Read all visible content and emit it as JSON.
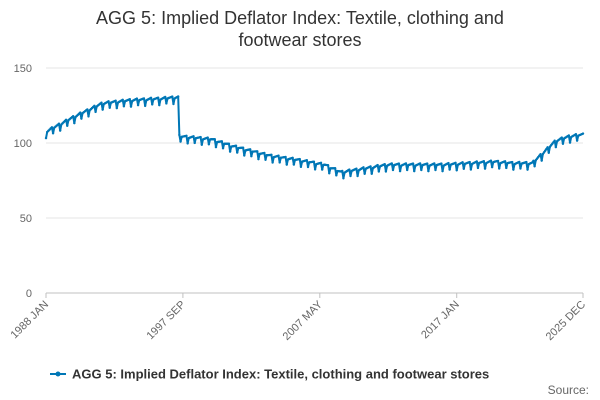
{
  "chart_data": {
    "type": "line",
    "title_lines": [
      "AGG 5: Implied Deflator Index: Textile, clothing and",
      "footwear stores"
    ],
    "xlabel": "",
    "ylabel": "",
    "ylim": [
      0,
      150
    ],
    "yticks": [
      0,
      50,
      100,
      150
    ],
    "x_tick_labels": [
      "1988 JAN",
      "1997 SEP",
      "2007 MAY",
      "2017 JAN",
      "2025 DEC"
    ],
    "x_tick_indices": [
      0,
      116,
      232,
      348,
      455
    ],
    "n_points": 456,
    "x_start": "1988 JAN",
    "x_end": "2025 DEC",
    "grid": true,
    "legend_position": "bottom",
    "source_label": "Source:",
    "series": [
      {
        "name": "AGG 5: Implied Deflator Index: Textile, clothing and footwear stores",
        "color": "#0077b6",
        "anchor_months": [
          0,
          24,
          48,
          72,
          96,
          112,
          113,
          140,
          160,
          190,
          215,
          236,
          250,
          290,
          320,
          336,
          380,
          396,
          412,
          432,
          444,
          455
        ],
        "anchor_values": [
          106,
          116,
          125,
          127,
          128,
          129,
          103,
          101,
          96,
          90,
          87,
          84,
          79,
          84,
          84,
          84,
          86,
          85,
          85,
          100,
          103,
          104
        ],
        "seasonal_amplitude": 2.5
      }
    ]
  }
}
